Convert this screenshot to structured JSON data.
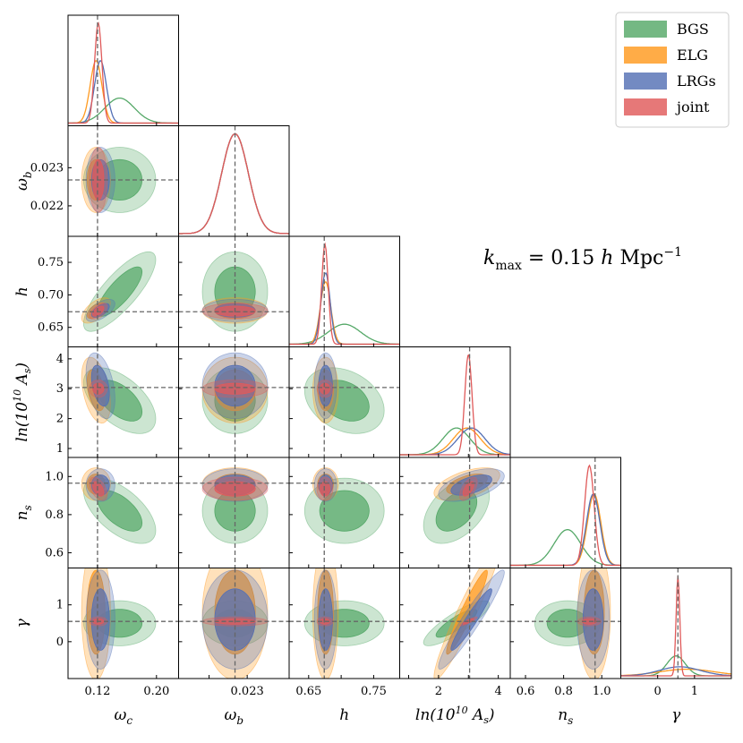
{
  "chart_data": {
    "type": "corner",
    "title": "",
    "annotation": "k_max = 0.15 h Mpc^-1",
    "parameters": [
      {
        "key": "omega_c",
        "label": "ω_c",
        "range": [
          0.08,
          0.23
        ],
        "ticks": [
          0.12,
          0.2
        ],
        "tick_labels": [
          "0.12",
          "0.20"
        ],
        "truth": 0.12
      },
      {
        "key": "omega_b",
        "label": "ω_b",
        "range": [
          0.0212,
          0.0241
        ],
        "ticks": [
          0.022,
          0.023
        ],
        "tick_labels": [
          "0.022",
          "0.023"
        ],
        "truth": 0.02268
      },
      {
        "key": "h",
        "label": "h",
        "range": [
          0.62,
          0.79
        ],
        "ticks": [
          0.65,
          0.7,
          0.75
        ],
        "tick_labels": [
          "0.65",
          "0.70",
          "0.75"
        ],
        "truth": 0.674
      },
      {
        "key": "lnAs",
        "label": "ln(10^10 A_s)",
        "range": [
          0.7,
          4.4
        ],
        "ticks": [
          1,
          2,
          3,
          4
        ],
        "tick_labels": [
          "1",
          "2",
          "3",
          "4"
        ],
        "truth": 3.04
      },
      {
        "key": "n_s",
        "label": "n_s",
        "range": [
          0.52,
          1.1
        ],
        "ticks": [
          0.6,
          0.8,
          1.0
        ],
        "tick_labels": [
          "0.6",
          "0.8",
          "1.0"
        ],
        "truth": 0.965
      },
      {
        "key": "gamma",
        "label": "γ",
        "range": [
          -1.0,
          2.0
        ],
        "ticks": [
          0,
          1
        ],
        "tick_labels": [
          "0",
          "1"
        ],
        "truth": 0.55
      }
    ],
    "diag_x_tick_labels": {
      "omega_c": [
        "0.12",
        "0.20"
      ],
      "omega_b": [
        "0.023"
      ],
      "h": [
        "0.65",
        "0.75"
      ],
      "lnAs": [
        "2",
        "4"
      ],
      "n_s": [
        "0.6",
        "0.8",
        "1.0"
      ],
      "gamma": [
        "0",
        "1"
      ]
    },
    "series": [
      {
        "name": "BGS",
        "color": "#55a868",
        "mean": [
          0.15,
          0.02268,
          0.705,
          2.6,
          0.82,
          0.5
        ],
        "sigma": [
          0.02,
          0.00035,
          0.025,
          0.45,
          0.07,
          0.25
        ],
        "corr": [
          [
            0,
            2,
            0.8
          ],
          [
            0,
            3,
            -0.55
          ],
          [
            0,
            4,
            -0.6
          ],
          [
            3,
            4,
            0.45
          ],
          [
            3,
            5,
            0.85
          ],
          [
            2,
            3,
            -0.3
          ]
        ]
      },
      {
        "name": "ELG",
        "color": "#ff9a1f",
        "mean": [
          0.118,
          0.02268,
          0.676,
          2.95,
          0.96,
          0.8
        ],
        "sigma": [
          0.008,
          0.00035,
          0.008,
          0.45,
          0.035,
          0.75
        ],
        "corr": [
          [
            0,
            2,
            0.6
          ],
          [
            3,
            5,
            0.95
          ],
          [
            0,
            3,
            -0.4
          ],
          [
            3,
            4,
            0.55
          ]
        ]
      },
      {
        "name": "LRGs",
        "color": "#5470b5",
        "mean": [
          0.124,
          0.02268,
          0.676,
          3.1,
          0.955,
          0.6
        ],
        "sigma": [
          0.008,
          0.00035,
          0.007,
          0.45,
          0.035,
          0.55
        ],
        "corr": [
          [
            0,
            2,
            0.6
          ],
          [
            3,
            5,
            0.95
          ],
          [
            0,
            3,
            -0.4
          ],
          [
            3,
            4,
            0.55
          ]
        ]
      },
      {
        "name": "joint",
        "color": "#e05a5a",
        "mean": [
          0.121,
          0.02268,
          0.675,
          3.0,
          0.935,
          0.55
        ],
        "sigma": [
          0.005,
          0.00035,
          0.005,
          0.12,
          0.025,
          0.05
        ],
        "corr": [
          [
            0,
            2,
            0.6
          ],
          [
            0,
            4,
            -0.5
          ],
          [
            3,
            4,
            0.6
          ],
          [
            3,
            5,
            0.9
          ]
        ]
      }
    ],
    "legend": {
      "position": "top-right",
      "entries": [
        "BGS",
        "ELG",
        "LRGs",
        "joint"
      ]
    },
    "truth_line_style": "dashed gray"
  }
}
